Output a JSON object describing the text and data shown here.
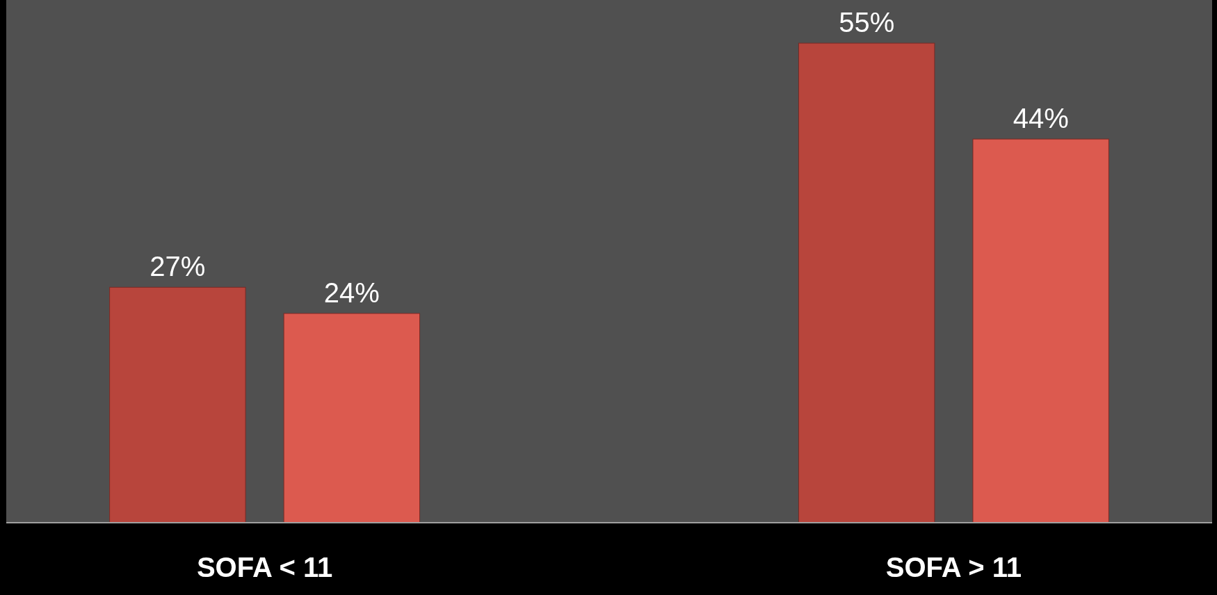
{
  "chart_data": {
    "type": "bar",
    "categories": [
      "SOFA < 11",
      "SOFA > 11"
    ],
    "series": [
      {
        "color": "#b8453c",
        "values": [
          27,
          55
        ],
        "value_labels": [
          "27%",
          "55%"
        ]
      },
      {
        "color": "#dc5a4f",
        "values": [
          24,
          44
        ],
        "value_labels": [
          "24%",
          "44%"
        ]
      }
    ]
  }
}
